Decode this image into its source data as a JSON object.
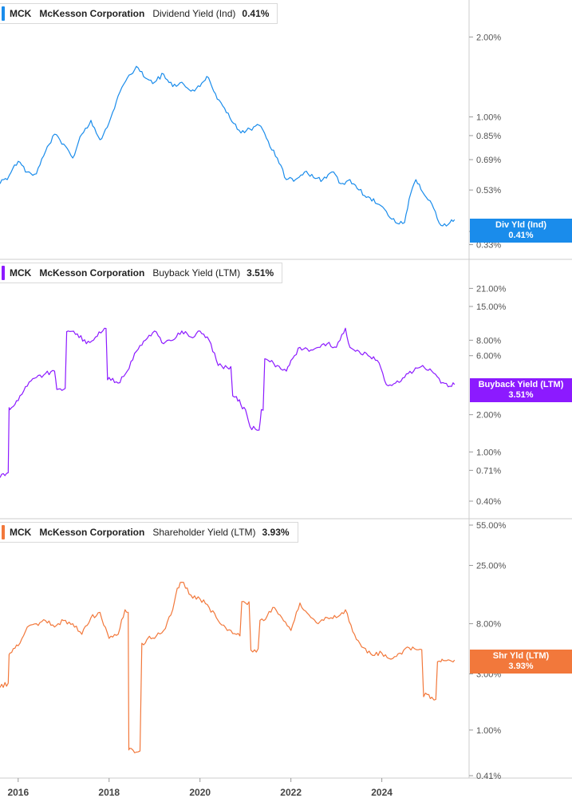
{
  "ticker": "MCK",
  "company": "McKesson Corporation",
  "chart_data": [
    {
      "type": "line",
      "metric": "Dividend Yield (Ind)",
      "current_value": "0.41%",
      "tag_label": "Div Yld (Ind)",
      "tag_value": "0.41%",
      "color": "#1a8ceb",
      "scale": "log",
      "ylim": [
        0.32,
        2.4
      ],
      "y_ticks": [
        2.0,
        1.0,
        0.85,
        0.69,
        0.53,
        0.37,
        0.33
      ],
      "y_tick_labels": [
        "2.00%",
        "1.00%",
        "0.85%",
        "0.69%",
        "0.53%",
        "0.37%",
        "0.33%"
      ],
      "series": [
        {
          "x": [
            2015.6,
            2015.8,
            2016.0,
            2016.2,
            2016.4,
            2016.6,
            2016.8,
            2017.0,
            2017.2,
            2017.4,
            2017.6,
            2017.8,
            2018.0,
            2018.2,
            2018.4,
            2018.6,
            2018.8,
            2019.0,
            2019.2,
            2019.4,
            2019.6,
            2019.8,
            2020.0,
            2020.15,
            2020.3,
            2020.5,
            2020.7,
            2020.9,
            2021.1,
            2021.3,
            2021.5,
            2021.7,
            2021.9,
            2022.1,
            2022.3,
            2022.5,
            2022.7,
            2022.9,
            2023.1,
            2023.3,
            2023.5,
            2023.7,
            2023.9,
            2024.1,
            2024.3,
            2024.5,
            2024.6,
            2024.75,
            2024.9,
            2025.1,
            2025.3,
            2025.5,
            2025.6
          ],
          "y": [
            0.56,
            0.6,
            0.68,
            0.62,
            0.61,
            0.74,
            0.86,
            0.79,
            0.7,
            0.86,
            0.97,
            0.82,
            0.95,
            1.2,
            1.4,
            1.55,
            1.4,
            1.35,
            1.45,
            1.3,
            1.35,
            1.25,
            1.3,
            1.42,
            1.25,
            1.1,
            0.96,
            0.87,
            0.9,
            0.93,
            0.81,
            0.7,
            0.58,
            0.58,
            0.62,
            0.59,
            0.58,
            0.62,
            0.56,
            0.58,
            0.53,
            0.5,
            0.47,
            0.44,
            0.4,
            0.4,
            0.49,
            0.58,
            0.52,
            0.47,
            0.39,
            0.4,
            0.41
          ]
        }
      ]
    },
    {
      "type": "line",
      "metric": "Buyback Yield (LTM)",
      "current_value": "3.51%",
      "tag_label": "Buyback Yield (LTM)",
      "tag_value": "3.51%",
      "color": "#8c1aff",
      "scale": "log",
      "ylim": [
        0.4,
        26
      ],
      "y_ticks": [
        21.0,
        15.0,
        8.0,
        6.0,
        2.0,
        1.0,
        0.71,
        0.4
      ],
      "y_tick_labels": [
        "21.00%",
        "15.00%",
        "8.00%",
        "6.00%",
        "2.00%",
        "1.00%",
        "0.71%",
        "0.40%"
      ],
      "series": [
        {
          "x": [
            2015.6,
            2015.78,
            2015.82,
            2016.0,
            2016.2,
            2016.4,
            2016.6,
            2016.8,
            2016.85,
            2017.0,
            2017.1,
            2017.3,
            2017.5,
            2017.7,
            2017.9,
            2018.0,
            2018.2,
            2018.4,
            2018.6,
            2018.8,
            2019.0,
            2019.2,
            2019.4,
            2019.6,
            2019.8,
            2020.0,
            2020.2,
            2020.4,
            2020.6,
            2020.8,
            2020.9,
            2021.0,
            2021.1,
            2021.3,
            2021.35,
            2021.5,
            2021.7,
            2021.9,
            2022.0,
            2022.2,
            2022.4,
            2022.6,
            2022.8,
            2023.0,
            2023.2,
            2023.3,
            2023.5,
            2023.7,
            2023.9,
            2024.1,
            2024.3,
            2024.5,
            2024.7,
            2024.9,
            2025.1,
            2025.3,
            2025.5,
            2025.6
          ],
          "y": [
            0.62,
            0.68,
            2.2,
            2.6,
            3.4,
            4.0,
            4.3,
            4.5,
            3.2,
            3.2,
            9.5,
            9.0,
            7.5,
            8.5,
            10.0,
            4.0,
            3.6,
            4.5,
            6.5,
            8.0,
            9.5,
            7.5,
            8.0,
            9.5,
            8.5,
            9.5,
            8.0,
            5.0,
            4.8,
            2.8,
            2.4,
            2.2,
            1.6,
            1.5,
            2.2,
            5.5,
            5.0,
            4.5,
            5.5,
            7.0,
            6.5,
            7.0,
            7.5,
            7.0,
            10.0,
            7.0,
            6.5,
            6.0,
            5.5,
            3.5,
            3.6,
            4.0,
            4.5,
            5.0,
            4.5,
            3.6,
            3.4,
            3.51
          ]
        }
      ]
    },
    {
      "type": "line",
      "metric": "Shareholder Yield (LTM)",
      "current_value": "3.93%",
      "tag_label": "Shr Yld (LTM)",
      "tag_value": "3.93%",
      "color": "#f2783b",
      "scale": "log",
      "ylim": [
        0.41,
        55
      ],
      "y_ticks": [
        55.0,
        25.0,
        8.0,
        3.0,
        1.0,
        0.41
      ],
      "y_tick_labels": [
        "55.00%",
        "25.00%",
        "8.00%",
        "3.00%",
        "1.00%",
        "0.41%"
      ],
      "series": [
        {
          "x": [
            2015.6,
            2015.78,
            2015.82,
            2016.0,
            2016.2,
            2016.4,
            2016.6,
            2016.8,
            2017.0,
            2017.2,
            2017.4,
            2017.6,
            2017.8,
            2018.0,
            2018.2,
            2018.35,
            2018.42,
            2018.45,
            2018.6,
            2018.8,
            2018.85,
            2019.0,
            2019.2,
            2019.4,
            2019.5,
            2019.6,
            2019.8,
            2020.0,
            2020.2,
            2020.4,
            2020.6,
            2020.8,
            2021.0,
            2021.2,
            2021.4,
            2021.6,
            2021.8,
            2022.0,
            2022.2,
            2022.4,
            2022.6,
            2022.8,
            2023.0,
            2023.2,
            2023.4,
            2023.6,
            2023.8,
            2024.0,
            2024.2,
            2024.4,
            2024.6,
            2024.8,
            2025.0,
            2025.1,
            2025.15,
            2025.3,
            2025.35,
            2025.5,
            2025.6
          ],
          "y": [
            2.3,
            2.5,
            4.5,
            5.2,
            7.5,
            8.0,
            8.5,
            7.5,
            8.5,
            8.0,
            6.5,
            9.0,
            10.0,
            6.0,
            6.5,
            10.5,
            10.0,
            0.7,
            0.65,
            5.5,
            6.0,
            6.0,
            7.0,
            10.5,
            16.0,
            18.0,
            14.0,
            13.0,
            11.0,
            8.5,
            7.0,
            6.5,
            12.0,
            4.8,
            8.5,
            11.0,
            9.0,
            7.0,
            12.0,
            9.5,
            8.0,
            9.0,
            9.0,
            10.5,
            6.5,
            5.0,
            4.3,
            4.5,
            4.0,
            4.5,
            5.0,
            4.8,
            2.0,
            1.9,
            1.8,
            3.8,
            3.9,
            3.9,
            3.93
          ]
        }
      ]
    }
  ],
  "x_axis": {
    "ticks": [
      2016,
      2018,
      2020,
      2022,
      2024
    ],
    "tick_labels": [
      "2016",
      "2018",
      "2020",
      "2022",
      "2024"
    ]
  }
}
